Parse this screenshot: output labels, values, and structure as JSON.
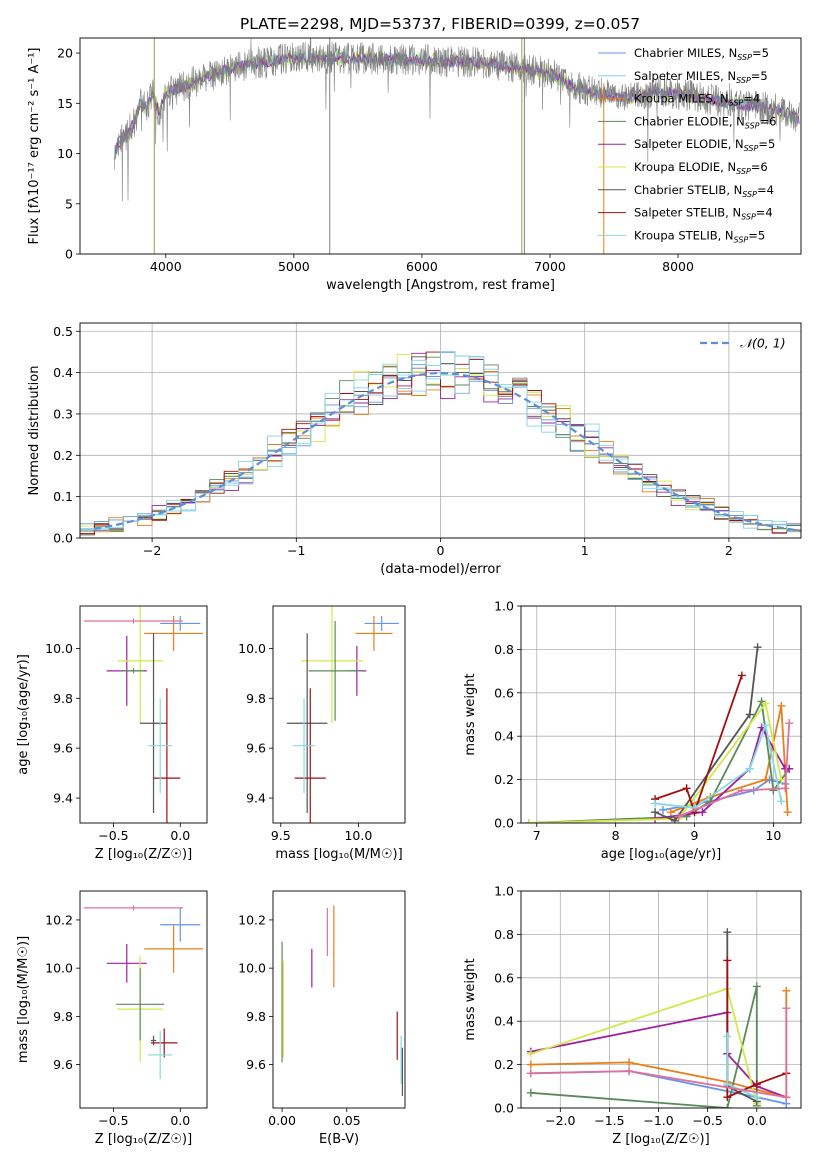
{
  "colors": {
    "series": [
      "#6495ed",
      "#87ceeb",
      "#e8801a",
      "#5a8a5a",
      "#a020a0",
      "#d2e84a",
      "#555555",
      "#a01010",
      "#87d8e0"
    ],
    "obs": "#808080",
    "gaussian": "#5b8fd6",
    "pink": "#e0709a"
  },
  "chart_data": [
    {
      "panel": "spectrum",
      "type": "line",
      "title": "PLATE=2298, MJD=53737, FIBERID=0399, z=0.057",
      "xlabel": "wavelength [Angstrom, rest frame]",
      "ylabel": "Flux [fλ10⁻¹⁷ erg cm⁻² s⁻¹ A⁻¹]",
      "xlim": [
        3330,
        8960
      ],
      "ylim": [
        0,
        21.5
      ],
      "xticks": [
        "4000",
        "5000",
        "6000",
        "7000",
        "8000"
      ],
      "yticks": [
        "0",
        "5",
        "10",
        "15",
        "20"
      ],
      "grid": false,
      "legend_position": "upper-right",
      "legend": [
        {
          "label": "Chabrier MILES, N",
          "sub": "SSP",
          "suffix": "=5"
        },
        {
          "label": "Salpeter MILES, N",
          "sub": "SSP",
          "suffix": "=5"
        },
        {
          "label": "Kroupa MILES, N",
          "sub": "SSP",
          "suffix": "=4"
        },
        {
          "label": "Chabrier ELODIE, N",
          "sub": "SSP",
          "suffix": "=6"
        },
        {
          "label": "Salpeter ELODIE, N",
          "sub": "SSP",
          "suffix": "=5"
        },
        {
          "label": "Kroupa ELODIE, N",
          "sub": "SSP",
          "suffix": "=6"
        },
        {
          "label": "Chabrier STELIB, N",
          "sub": "SSP",
          "suffix": "=4"
        },
        {
          "label": "Salpeter STELIB, N",
          "sub": "SSP",
          "suffix": "=4"
        },
        {
          "label": "Kroupa STELIB, N",
          "sub": "SSP",
          "suffix": "=5"
        }
      ],
      "continuum": {
        "x": [
          3600,
          3650,
          3700,
          3750,
          3800,
          3850,
          3900,
          3950,
          4000,
          4100,
          4200,
          4300,
          4400,
          4500,
          4700,
          5000,
          5500,
          6000,
          6500,
          7000,
          7200,
          7400,
          7600,
          7800,
          8000,
          8200,
          8400,
          8600,
          8800,
          8950
        ],
        "y": [
          10,
          11.5,
          12,
          13,
          15,
          14.5,
          16,
          14,
          16,
          16.5,
          17,
          17.5,
          18,
          18.5,
          19,
          19.5,
          19.5,
          19.3,
          19,
          18,
          16.5,
          16,
          15.5,
          16,
          16,
          15.5,
          15,
          14.7,
          14.3,
          13.5
        ]
      }
    },
    {
      "panel": "residuals",
      "type": "histogram",
      "xlabel": "(data-model)/error",
      "ylabel": "Normed distribution",
      "xlim": [
        -2.5,
        2.5
      ],
      "ylim": [
        0,
        0.52
      ],
      "xticks": [
        "−2",
        "−1",
        "0",
        "1",
        "2"
      ],
      "yticks": [
        "0.0",
        "0.1",
        "0.2",
        "0.3",
        "0.4",
        "0.5"
      ],
      "grid": true,
      "gaussian": {
        "mu": 0,
        "sigma": 1
      },
      "legend": [
        {
          "label": "𝒩(0, 1)"
        }
      ]
    },
    {
      "panel": "age-Z",
      "type": "errorbar",
      "xlabel": "Z [log₁₀(Z/Z☉)]",
      "ylabel": "age  [log₁₀(age/yr)]",
      "xlim": [
        -0.75,
        0.2
      ],
      "ylim": [
        9.3,
        10.17
      ],
      "xticks": [
        -0.5,
        0.0
      ],
      "xtick_labels": [
        "−0.5",
        "0.0"
      ],
      "yticks": [
        9.4,
        9.6,
        9.8,
        10.0
      ],
      "yticks_labels": [
        "9.4",
        "9.6",
        "9.8",
        "10.0"
      ],
      "points": [
        {
          "x": 0.0,
          "y": 10.1,
          "xerr": 0.15,
          "yerr": 0.03,
          "color": 0
        },
        {
          "x": -0.05,
          "y": 10.06,
          "xerr": 0.22,
          "yerr": 0.07,
          "color": 2
        },
        {
          "x": -0.4,
          "y": 9.91,
          "xerr": 0.15,
          "yerr": 0.14,
          "color": 4
        },
        {
          "x": -0.3,
          "y": 9.95,
          "xerr": 0.17,
          "yerr": 0.25,
          "color": 5
        },
        {
          "x": -0.2,
          "y": 9.7,
          "xerr": 0.1,
          "yerr": 0.36,
          "color": 6
        },
        {
          "x": -0.1,
          "y": 9.48,
          "xerr": 0.1,
          "yerr": 0.36,
          "color": 7
        },
        {
          "x": -0.15,
          "y": 9.61,
          "xerr": 0.09,
          "yerr": 0.19,
          "color": 8
        },
        {
          "x": -0.35,
          "y": 10.11,
          "xerr": 0.37,
          "yerr": 0.01,
          "color": "pink"
        },
        {
          "x": -0.35,
          "y": 9.91,
          "xerr": 0.08,
          "yerr": 0.01,
          "color": 3
        }
      ]
    },
    {
      "panel": "age-mass",
      "type": "errorbar",
      "xlabel": "mass [log₁₀(M/M☉)]",
      "ylabel": "",
      "xlim": [
        9.45,
        10.3
      ],
      "ylim": [
        9.3,
        10.17
      ],
      "xticks": [
        9.5,
        10.0
      ],
      "xtick_labels": [
        "9.5",
        "10.0"
      ],
      "yticks": [
        9.4,
        9.6,
        9.8,
        10.0
      ],
      "yticks_labels": [
        "9.4",
        "9.6",
        "9.8",
        "10.0"
      ],
      "points": [
        {
          "x": 10.15,
          "y": 10.1,
          "xerr": 0.11,
          "yerr": 0.03,
          "color": 0
        },
        {
          "x": 10.1,
          "y": 10.06,
          "xerr": 0.12,
          "yerr": 0.07,
          "color": 2
        },
        {
          "x": 9.99,
          "y": 9.91,
          "xerr": 0.06,
          "yerr": 0.1,
          "color": 4
        },
        {
          "x": 9.83,
          "y": 9.95,
          "xerr": 0.2,
          "yerr": 0.25,
          "color": 5
        },
        {
          "x": 9.85,
          "y": 9.91,
          "xerr": 0.17,
          "yerr": 0.2,
          "color": 3
        },
        {
          "x": 9.67,
          "y": 9.7,
          "xerr": 0.13,
          "yerr": 0.36,
          "color": 6
        },
        {
          "x": 9.69,
          "y": 9.48,
          "xerr": 0.1,
          "yerr": 0.36,
          "color": 7
        },
        {
          "x": 9.65,
          "y": 9.61,
          "xerr": 0.07,
          "yerr": 0.19,
          "color": 8
        }
      ]
    },
    {
      "panel": "massweight-age",
      "type": "line",
      "xlabel": "age  [log₁₀(age/yr)]",
      "ylabel": "mass weight",
      "xlim": [
        6.8,
        10.35
      ],
      "ylim": [
        0,
        1
      ],
      "xticks": [
        7,
        8,
        9,
        10
      ],
      "xtick_labels": [
        "7",
        "8",
        "9",
        "10"
      ],
      "yticks": [
        0,
        0.2,
        0.4,
        0.6,
        0.8,
        1.0
      ],
      "yticks_labels": [
        "0.0",
        "0.2",
        "0.4",
        "0.6",
        "0.8",
        "1.0"
      ],
      "grid": true,
      "series": [
        {
          "color": 0,
          "x": [
            8.6,
            9.2,
            9.75,
            9.95,
            10.15
          ],
          "y": [
            0.06,
            0.1,
            0.15,
            0.2,
            0.18
          ]
        },
        {
          "color": 2,
          "x": [
            8.7,
            9.2,
            9.9,
            10.1,
            10.18
          ],
          "y": [
            0.05,
            0.12,
            0.2,
            0.54,
            0.05
          ]
        },
        {
          "color": 3,
          "x": [
            6.9,
            8.9,
            9.2,
            9.85,
            10.0,
            10.2
          ],
          "y": [
            0.0,
            0.03,
            0.1,
            0.56,
            0.15,
            0.25
          ]
        },
        {
          "color": 4,
          "x": [
            8.5,
            9.1,
            9.7,
            9.85,
            10.15,
            10.2
          ],
          "y": [
            0.02,
            0.05,
            0.25,
            0.44,
            0.25,
            0.25
          ]
        },
        {
          "color": 5,
          "x": [
            6.9,
            8.8,
            9.9,
            10.1
          ],
          "y": [
            0.0,
            0.02,
            0.55,
            0.2
          ]
        },
        {
          "color": 6,
          "x": [
            8.5,
            8.75,
            9.7,
            9.8
          ],
          "y": [
            0.05,
            0.01,
            0.5,
            0.81
          ]
        },
        {
          "color": 7,
          "x": [
            8.5,
            8.9,
            9.0,
            9.6
          ],
          "y": [
            0.11,
            0.16,
            0.05,
            0.68
          ]
        },
        {
          "color": 8,
          "x": [
            8.5,
            9.0,
            9.7,
            9.9,
            10.1
          ],
          "y": [
            0.09,
            0.07,
            0.25,
            0.45,
            0.1
          ]
        },
        {
          "color": "pink",
          "x": [
            8.8,
            9.6,
            10.15,
            10.2
          ],
          "y": [
            0.03,
            0.15,
            0.16,
            0.46
          ]
        }
      ]
    },
    {
      "panel": "mass-Z",
      "type": "errorbar",
      "xlabel": "Z [log₁₀(Z/Z☉)]",
      "ylabel": "mass [log₁₀(M/M☉)]",
      "xlim": [
        -0.75,
        0.2
      ],
      "ylim": [
        9.42,
        10.32
      ],
      "xticks": [
        -0.5,
        0.0
      ],
      "xtick_labels": [
        "−0.5",
        "0.0"
      ],
      "yticks": [
        9.6,
        9.8,
        10.0,
        10.2
      ],
      "yticks_labels": [
        "9.6",
        "9.8",
        "10.0",
        "10.2"
      ],
      "points": [
        {
          "x": 0.0,
          "y": 10.18,
          "xerr": 0.15,
          "yerr": 0.07,
          "color": 0
        },
        {
          "x": -0.05,
          "y": 10.08,
          "xerr": 0.22,
          "yerr": 0.1,
          "color": 2
        },
        {
          "x": -0.4,
          "y": 10.02,
          "xerr": 0.15,
          "yerr": 0.08,
          "color": 4
        },
        {
          "x": -0.3,
          "y": 9.83,
          "xerr": 0.17,
          "yerr": 0.22,
          "color": 5
        },
        {
          "x": -0.3,
          "y": 9.85,
          "xerr": 0.18,
          "yerr": 0.15,
          "color": 3
        },
        {
          "x": -0.2,
          "y": 9.7,
          "xerr": 0.02,
          "yerr": 0.02,
          "color": 6
        },
        {
          "x": -0.12,
          "y": 9.69,
          "xerr": 0.1,
          "yerr": 0.06,
          "color": 7
        },
        {
          "x": -0.15,
          "y": 9.64,
          "xerr": 0.09,
          "yerr": 0.1,
          "color": 8
        },
        {
          "x": -0.35,
          "y": 10.25,
          "xerr": 0.37,
          "yerr": 0.01,
          "color": "pink"
        }
      ]
    },
    {
      "panel": "mass-EBV",
      "type": "errorbar",
      "xlabel": "E(B-V)",
      "ylabel": "",
      "xlim": [
        -0.007,
        0.095
      ],
      "ylim": [
        9.42,
        10.32
      ],
      "xticks": [
        0.0,
        0.05
      ],
      "xtick_labels": [
        "0.00",
        "0.05"
      ],
      "yticks": [
        9.6,
        9.8,
        10.0,
        10.2
      ],
      "yticks_labels": [
        "9.6",
        "9.8",
        "10.0",
        "10.2"
      ],
      "points": [
        {
          "x": 0.0,
          "y": 9.86,
          "xerr": 0,
          "yerr": 0.25,
          "color": 3
        },
        {
          "x": 0.001,
          "y": 9.83,
          "xerr": 0,
          "yerr": 0.2,
          "color": 5
        },
        {
          "x": 0.023,
          "y": 10.0,
          "xerr": 0,
          "yerr": 0.08,
          "color": 4
        },
        {
          "x": 0.035,
          "y": 10.15,
          "xerr": 0,
          "yerr": 0.1,
          "color": "pink"
        },
        {
          "x": 0.04,
          "y": 10.09,
          "xerr": 0,
          "yerr": 0.17,
          "color": 2
        },
        {
          "x": 0.089,
          "y": 9.72,
          "xerr": 0,
          "yerr": 0.1,
          "color": 7
        },
        {
          "x": 0.092,
          "y": 9.62,
          "xerr": 0,
          "yerr": 0.1,
          "color": 8
        },
        {
          "x": 0.093,
          "y": 9.57,
          "xerr": 0,
          "yerr": 0.1,
          "color": 6
        }
      ]
    },
    {
      "panel": "massweight-Z",
      "type": "line",
      "xlabel": "Z [log₁₀(Z/Z☉)]",
      "ylabel": "mass weight",
      "xlim": [
        -2.4,
        0.45
      ],
      "ylim": [
        0,
        1
      ],
      "xticks": [
        -2.0,
        -1.5,
        -1.0,
        -0.5,
        0.0
      ],
      "xtick_labels": [
        "−2.0",
        "−1.5",
        "−1.0",
        "−0.5",
        "0.0"
      ],
      "yticks": [
        0,
        0.2,
        0.4,
        0.6,
        0.8,
        1.0
      ],
      "yticks_labels": [
        "0.0",
        "0.2",
        "0.4",
        "0.6",
        "0.8",
        "1.0"
      ],
      "grid": true,
      "series": [
        {
          "color": 0,
          "x": [
            -2.3,
            -1.3,
            0.0,
            0.3
          ],
          "y": [
            0.16,
            0.17,
            0.05,
            0.02
          ]
        },
        {
          "color": 2,
          "x": [
            -2.3,
            -1.3,
            -0.3,
            0.3,
            0.3
          ],
          "y": [
            0.2,
            0.21,
            0.12,
            0.05,
            0.54
          ]
        },
        {
          "color": 3,
          "x": [
            -2.3,
            -0.3,
            0.0,
            0.0
          ],
          "y": [
            0.07,
            0.0,
            0.56,
            0.01
          ]
        },
        {
          "color": 4,
          "x": [
            -2.3,
            -0.3,
            -0.3,
            0.0,
            0.3
          ],
          "y": [
            0.26,
            0.44,
            0.25,
            0.1,
            0.05
          ]
        },
        {
          "color": 5,
          "x": [
            -2.3,
            -0.3,
            0.0
          ],
          "y": [
            0.25,
            0.55,
            0.02
          ]
        },
        {
          "color": 6,
          "x": [
            -0.3,
            -0.3,
            0.0
          ],
          "y": [
            0.81,
            0.1,
            0.03
          ]
        },
        {
          "color": 7,
          "x": [
            -0.3,
            -0.3,
            0.0,
            0.3
          ],
          "y": [
            0.68,
            0.05,
            0.11,
            0.16
          ]
        },
        {
          "color": 8,
          "x": [
            -0.3,
            -0.3,
            0.0
          ],
          "y": [
            0.33,
            0.11,
            0.05
          ]
        },
        {
          "color": "pink",
          "x": [
            -2.3,
            -1.3,
            0.3,
            0.3
          ],
          "y": [
            0.16,
            0.17,
            0.05,
            0.46
          ]
        }
      ]
    }
  ]
}
